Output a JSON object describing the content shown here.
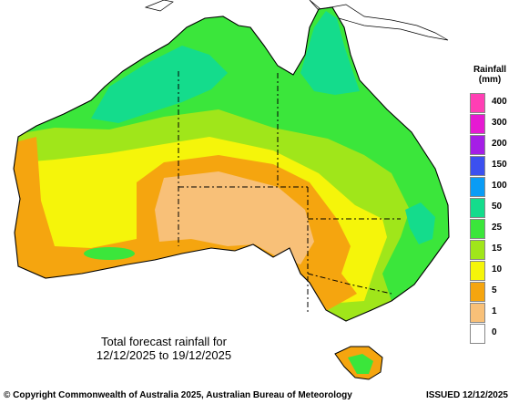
{
  "legend": {
    "title_line1": "Rainfall",
    "title_line2": "(mm)",
    "items": [
      {
        "label": "400",
        "color": "#ff3fb4"
      },
      {
        "label": "300",
        "color": "#e61ad2"
      },
      {
        "label": "200",
        "color": "#a51ee6"
      },
      {
        "label": "150",
        "color": "#3c50f0"
      },
      {
        "label": "100",
        "color": "#0a9cf5"
      },
      {
        "label": "50",
        "color": "#14dc8c"
      },
      {
        "label": "25",
        "color": "#3be63b"
      },
      {
        "label": "15",
        "color": "#a0e61a"
      },
      {
        "label": "10",
        "color": "#f5f50a"
      },
      {
        "label": "5",
        "color": "#f5a50f"
      },
      {
        "label": "1",
        "color": "#f8c078"
      },
      {
        "label": "0",
        "color": "#ffffff"
      }
    ]
  },
  "caption": {
    "line1": "Total forecast rainfall for",
    "line2": "12/12/2025 to 19/12/2025"
  },
  "footer": {
    "copyright": "© Copyright Commonwealth of Australia 2025, Australian Bureau of Meteorology",
    "issued": "ISSUED 12/12/2025"
  },
  "colors": {
    "ocean": "#ffffff",
    "coast": "#000000"
  }
}
